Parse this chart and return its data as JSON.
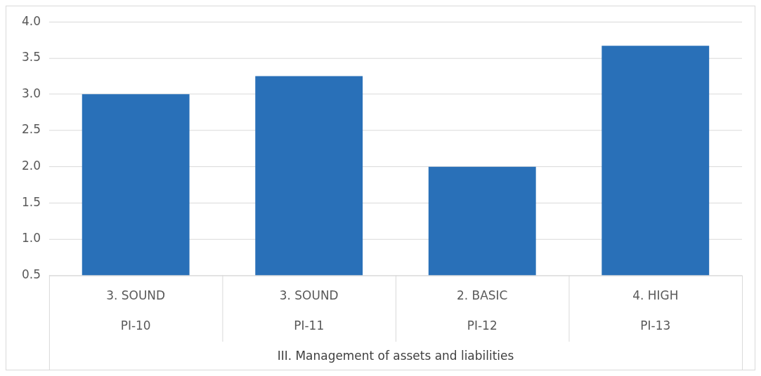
{
  "chart_data": {
    "type": "bar",
    "xlabel": "III. Management of assets and liabilities",
    "categories": [
      "PI-10",
      "PI-11",
      "PI-12",
      "PI-13"
    ],
    "values": [
      3.0,
      3.25,
      2.0,
      3.67
    ],
    "color": "#2970b8",
    "annotations": [
      "3. SOUND",
      "3. SOUND",
      "2. BASIC",
      "4. HIGH"
    ],
    "ylim": [
      0.5,
      4.0
    ],
    "yticks": [
      0.5,
      {
        "value": 1,
        "label": "1.0"
      },
      1.5,
      {
        "value": 2,
        "label": "2.0"
      },
      2.5,
      {
        "value": 3,
        "label": "3.0"
      },
      3.5,
      {
        "value": 4,
        "label": "4.0"
      }
    ],
    "grid": "y",
    "legend": false
  }
}
